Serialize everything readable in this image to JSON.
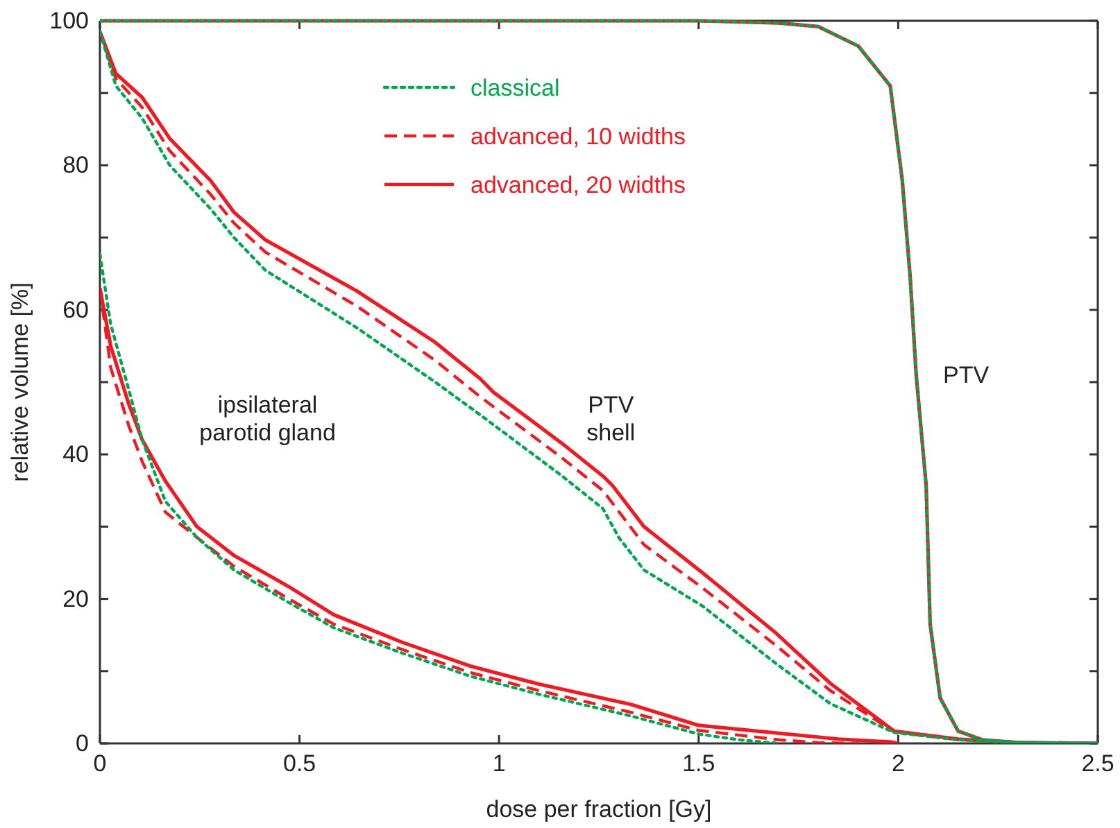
{
  "chart_data": {
    "type": "line",
    "xlabel": "dose per fraction [Gy]",
    "ylabel": "relative volume [%]",
    "xlim": [
      0,
      2.5
    ],
    "xticks": [
      0,
      0.5,
      1,
      1.5,
      2,
      2.5
    ],
    "ylim": [
      0,
      100
    ],
    "yticks": [
      0,
      {
        "value": 10,
        "label": null
      },
      20,
      {
        "value": 30,
        "label": null
      },
      40,
      {
        "value": 50,
        "label": null
      },
      60,
      {
        "value": 70,
        "label": null
      },
      80,
      {
        "value": 90,
        "label": null
      },
      100
    ],
    "grid": false,
    "legend": "top",
    "marker": "none",
    "annotations": [
      "ipsilateral\nparotid gland",
      "PTV\nshell",
      "PTV"
    ],
    "series": [
      {
        "name": "classical",
        "color": "#00a651",
        "line_style": "dotted",
        "x": [
          0,
          0.04,
          0.106,
          0.175,
          0.277,
          0.336,
          0.414,
          0.644,
          0.84,
          0.952,
          1.158,
          1.26,
          1.3,
          1.363,
          1.51,
          1.695,
          1.83,
          1.99,
          2.15,
          2.3,
          2.5
        ],
        "values": [
          98.5,
          91,
          86.5,
          80,
          74,
          70,
          65.5,
          57.5,
          50,
          45.5,
          37,
          32.5,
          28.5,
          24,
          19,
          11,
          5.5,
          1.5,
          0.5,
          0.1,
          0
        ]
      },
      {
        "name": "advanced, 10 widths",
        "color": "#ed1c24",
        "line_style": "dashed",
        "x": [
          0,
          0.04,
          0.106,
          0.175,
          0.277,
          0.336,
          0.414,
          0.644,
          0.84,
          0.952,
          1.158,
          1.26,
          1.363,
          1.51,
          1.695,
          1.83,
          1.99,
          2.15,
          2.3,
          2.5
        ],
        "values": [
          98.5,
          92,
          88,
          82,
          76,
          72,
          68,
          60.5,
          53,
          48,
          39.5,
          35,
          27.5,
          21.5,
          13.5,
          7.3,
          1.6,
          0.5,
          0.1,
          0
        ]
      },
      {
        "name": "advanced, 20 widths",
        "color": "#ed1c24",
        "line_style": "solid",
        "x": [
          0,
          0.04,
          0.106,
          0.175,
          0.277,
          0.336,
          0.414,
          0.644,
          0.84,
          0.952,
          0.986,
          1.158,
          1.26,
          1.284,
          1.363,
          1.51,
          1.695,
          1.83,
          1.99,
          2.15,
          2.3,
          2.5
        ],
        "values": [
          98.5,
          92.7,
          89.4,
          83.7,
          77.9,
          73.5,
          69.7,
          62.6,
          55.5,
          50.5,
          48.6,
          41.5,
          37,
          35.7,
          30,
          23.6,
          15.2,
          8.3,
          1.7,
          0.6,
          0.1,
          0
        ]
      },
      {
        "color": "#00a651",
        "line_style": "dotted",
        "x": [
          0,
          0.027,
          0.072,
          0.106,
          0.164,
          0.243,
          0.336,
          0.473,
          0.586,
          0.757,
          0.928,
          1.1,
          1.33,
          1.5,
          1.6,
          1.7
        ],
        "values": [
          67.7,
          58,
          49,
          42,
          33.5,
          28.5,
          24,
          19.5,
          16,
          12.5,
          9.3,
          6.8,
          3.8,
          1.3,
          0.5,
          0
        ]
      },
      {
        "color": "#ed1c24",
        "line_style": "dashed",
        "x": [
          0,
          0.027,
          0.072,
          0.106,
          0.164,
          0.243,
          0.336,
          0.473,
          0.586,
          0.757,
          0.928,
          1.1,
          1.33,
          1.5,
          1.7,
          1.8,
          1.9
        ],
        "values": [
          63,
          52,
          44,
          39,
          32,
          28.5,
          24.5,
          20,
          16.5,
          13,
          9.8,
          7.3,
          4.3,
          1.8,
          0.5,
          0.1,
          0
        ]
      },
      {
        "color": "#ed1c24",
        "line_style": "solid",
        "x": [
          0,
          0.027,
          0.072,
          0.106,
          0.164,
          0.243,
          0.336,
          0.473,
          0.586,
          0.757,
          0.928,
          1.1,
          1.33,
          1.5,
          1.85,
          1.98,
          2.0
        ],
        "values": [
          63,
          55,
          47,
          42,
          36.3,
          30,
          26,
          21.7,
          17.8,
          14,
          10.7,
          8.2,
          5.4,
          2.5,
          0.6,
          0.2,
          0
        ]
      },
      {
        "color": "#ed1c24",
        "line_style": "solid",
        "x": [
          0,
          1.5,
          1.7,
          1.8,
          1.9,
          1.98,
          2.01,
          2.03,
          2.045,
          2.07,
          2.08,
          2.105,
          2.15,
          2.21,
          2.3,
          2.5
        ],
        "values": [
          100,
          100,
          99.7,
          99.2,
          96.5,
          91,
          78,
          64.5,
          51,
          35.7,
          16.5,
          6.3,
          1.7,
          0.5,
          0.1,
          0
        ]
      },
      {
        "color": "#00a651",
        "line_style": "dotted",
        "x": [
          0,
          1.5,
          1.7,
          1.8,
          1.9,
          1.98,
          2.01,
          2.03,
          2.045,
          2.07,
          2.08,
          2.105,
          2.15,
          2.21,
          2.3,
          2.5
        ],
        "values": [
          100,
          100,
          99.7,
          99.2,
          96.5,
          91,
          78,
          64.5,
          51,
          35.7,
          16.5,
          6.3,
          1.7,
          0.5,
          0.1,
          0
        ]
      }
    ]
  }
}
